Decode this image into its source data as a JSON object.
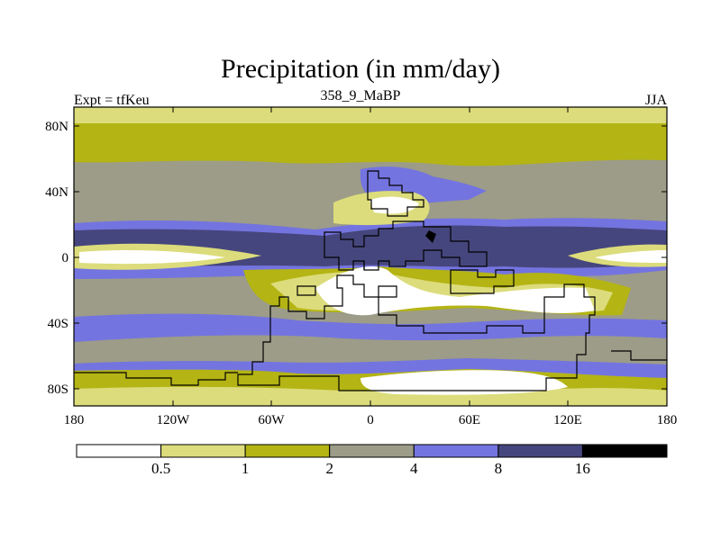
{
  "title": "Precipitation (in mm/day)",
  "left_label": "Expt = tfKeu",
  "center_label": "358_9_MaBP",
  "right_label": "JJA",
  "lat_ticks": [
    "80N",
    "40N",
    "0",
    "40S",
    "80S"
  ],
  "lon_ticks": [
    "180",
    "120W",
    "60W",
    "0",
    "60E",
    "120E",
    "180"
  ],
  "colorbar": {
    "colors": [
      "#ffffff",
      "#dcdc7c",
      "#b4b414",
      "#9c9c88",
      "#7474e0",
      "#46467e",
      "#000000"
    ],
    "labels": [
      "0.5",
      "1",
      "2",
      "4",
      "8",
      "16"
    ]
  }
}
